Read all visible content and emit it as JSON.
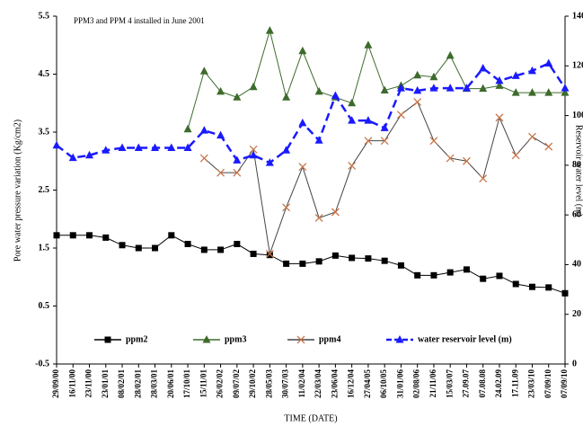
{
  "chart_data": {
    "type": "line",
    "annotation": "PPM3 and PPM 4 installed in June 2001",
    "x_label": "TIME (DATE)",
    "y_label": "Pore water pressure variation (Kg/cm2)",
    "y2_label": "Reservoir water level (m)",
    "categories": [
      "29/09/00",
      "16/11/00",
      "23/11/00",
      "23/01/01",
      "08/02/01",
      "28/02/01",
      "28/03/01",
      "20/06/01",
      "17/10/01",
      "15/11/01",
      "26/02/02",
      "09/07/02",
      "29/10/02",
      "28/05/03",
      "30/07/03",
      "11/02/04",
      "22/03/04",
      "23/06/04",
      "16/12/04",
      "27/04/05",
      "06/10/05",
      "31/01/06",
      "02/08/06",
      "21/11/06",
      "15/03/07",
      "27.09.07",
      "07.08.08",
      "24.02.09",
      "17.11.09",
      "23/03/10",
      "07/09/10",
      "07/09/10"
    ],
    "ylim": [
      -0.5,
      5.5
    ],
    "yticks": [
      -0.5,
      0.5,
      1.5,
      2.5,
      3.5,
      4.5,
      5.5
    ],
    "y2lim": [
      0,
      140
    ],
    "y2ticks": [
      0,
      20,
      40,
      60,
      80,
      100,
      120,
      140
    ],
    "series": [
      {
        "name": "ppm2",
        "color": "#000000",
        "marker": "square",
        "dash": false,
        "values": [
          1.72,
          1.72,
          1.72,
          1.68,
          1.55,
          1.5,
          1.5,
          1.72,
          1.57,
          1.47,
          1.47,
          1.57,
          1.4,
          1.38,
          1.23,
          1.23,
          1.27,
          1.37,
          1.33,
          1.32,
          1.28,
          1.2,
          1.03,
          1.03,
          1.08,
          1.13,
          0.97,
          1.02,
          0.88,
          0.83,
          0.82,
          0.72
        ]
      },
      {
        "name": "ppm3",
        "color": "#3d6b2c",
        "marker": "triangle",
        "dash": false,
        "values": [
          null,
          null,
          null,
          null,
          null,
          null,
          null,
          null,
          3.55,
          4.55,
          4.2,
          4.1,
          4.28,
          5.25,
          4.1,
          4.9,
          4.2,
          4.1,
          4.0,
          5.0,
          4.22,
          4.3,
          4.48,
          4.45,
          4.82,
          4.25,
          4.25,
          4.3,
          4.18,
          4.18,
          4.18,
          4.18
        ]
      },
      {
        "name": "ppm4",
        "color": "#c8764b",
        "marker": "cross",
        "dash": false,
        "values": [
          null,
          null,
          null,
          null,
          null,
          null,
          null,
          null,
          null,
          3.05,
          2.8,
          2.8,
          3.2,
          1.4,
          2.2,
          2.9,
          2.02,
          2.12,
          2.92,
          3.35,
          3.35,
          3.8,
          4.02,
          3.35,
          3.05,
          3.0,
          2.7,
          3.75,
          3.1,
          3.42,
          3.25,
          null
        ]
      },
      {
        "name": "water reservoir level (m)",
        "color": "#1a1aff",
        "marker": "triangle",
        "dash": true,
        "axis": "y2",
        "values": [
          88,
          83,
          84,
          86,
          87,
          87,
          87,
          87,
          87,
          94,
          92,
          82,
          84,
          81,
          86,
          97,
          90,
          108,
          98,
          98,
          95,
          111,
          110,
          111,
          111,
          111,
          119,
          114,
          116,
          118,
          121,
          111
        ]
      }
    ]
  }
}
